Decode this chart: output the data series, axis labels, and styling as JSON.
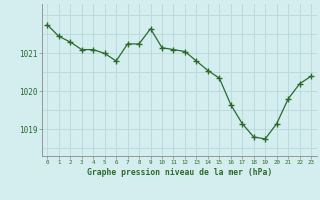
{
  "x": [
    0,
    1,
    2,
    3,
    4,
    5,
    6,
    7,
    8,
    9,
    10,
    11,
    12,
    13,
    14,
    15,
    16,
    17,
    18,
    19,
    20,
    21,
    22,
    23
  ],
  "y": [
    1021.75,
    1021.45,
    1021.3,
    1021.1,
    1021.1,
    1021.0,
    1020.8,
    1021.25,
    1021.25,
    1021.65,
    1021.15,
    1021.1,
    1021.05,
    1020.8,
    1020.55,
    1020.35,
    1019.65,
    1019.15,
    1018.8,
    1018.75,
    1019.15,
    1019.8,
    1020.2,
    1020.4
  ],
  "line_color": "#2a6b2a",
  "marker_color": "#2a6b2a",
  "bg_color": "#d4eef0",
  "grid_color": "#b8d8dc",
  "axis_label_color": "#2a6b2a",
  "tick_label_color": "#2a6b2a",
  "title": "Graphe pression niveau de la mer (hPa)",
  "yticks": [
    1019,
    1020,
    1021
  ],
  "ylim": [
    1018.3,
    1022.3
  ],
  "xlim": [
    -0.5,
    23.5
  ]
}
